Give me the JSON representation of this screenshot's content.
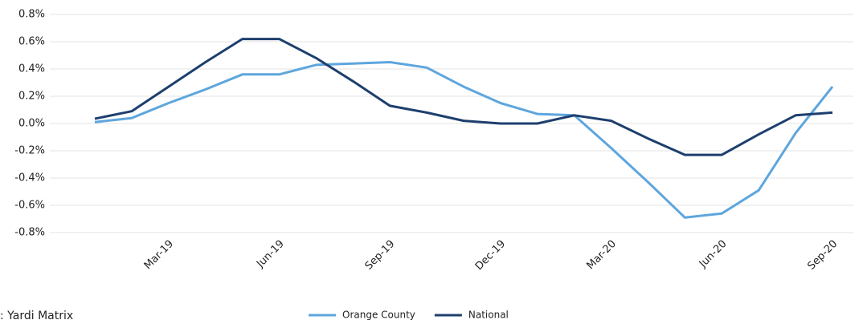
{
  "chart_data": {
    "type": "line",
    "categories": [
      null,
      null,
      "Mar-19",
      null,
      null,
      "Jun-19",
      null,
      null,
      "Sep-19",
      null,
      null,
      "Dec-19",
      null,
      null,
      "Mar-20",
      null,
      null,
      "Jun-20",
      null,
      null,
      "Sep-20"
    ],
    "series": [
      {
        "name": "Orange County",
        "color": "#5ea6dd",
        "values": [
          0.01,
          0.04,
          0.15,
          0.25,
          0.36,
          0.36,
          0.43,
          0.44,
          0.45,
          0.41,
          0.27,
          0.15,
          0.07,
          0.06,
          -0.18,
          -0.43,
          -0.69,
          -0.66,
          -0.49,
          -0.07,
          0.27
        ]
      },
      {
        "name": "National",
        "color": "#1d3f6e",
        "values": [
          0.035,
          0.09,
          0.27,
          0.45,
          0.62,
          0.62,
          0.48,
          0.31,
          0.13,
          0.08,
          0.02,
          0.0,
          0.0,
          0.06,
          0.02,
          -0.11,
          -0.23,
          -0.23,
          -0.08,
          0.06,
          0.08
        ]
      }
    ],
    "ylim": [
      -0.8,
      0.8
    ],
    "yticks": [
      {
        "value": 0.8,
        "label": "0.8%"
      },
      {
        "value": 0.6,
        "label": "0.6%"
      },
      {
        "value": 0.4,
        "label": "0.4%"
      },
      {
        "value": 0.2,
        "label": "0.2%"
      },
      {
        "value": 0,
        "label": "0.0%"
      },
      {
        "value": -0.2,
        "label": "-0.2%"
      },
      {
        "value": -0.4,
        "label": "-0.4%"
      },
      {
        "value": -0.6,
        "label": "-0.6%"
      },
      {
        "value": -0.8,
        "label": "-0.8%"
      }
    ],
    "grid": true,
    "source": ": Yardi Matrix",
    "legend": "bottom"
  }
}
